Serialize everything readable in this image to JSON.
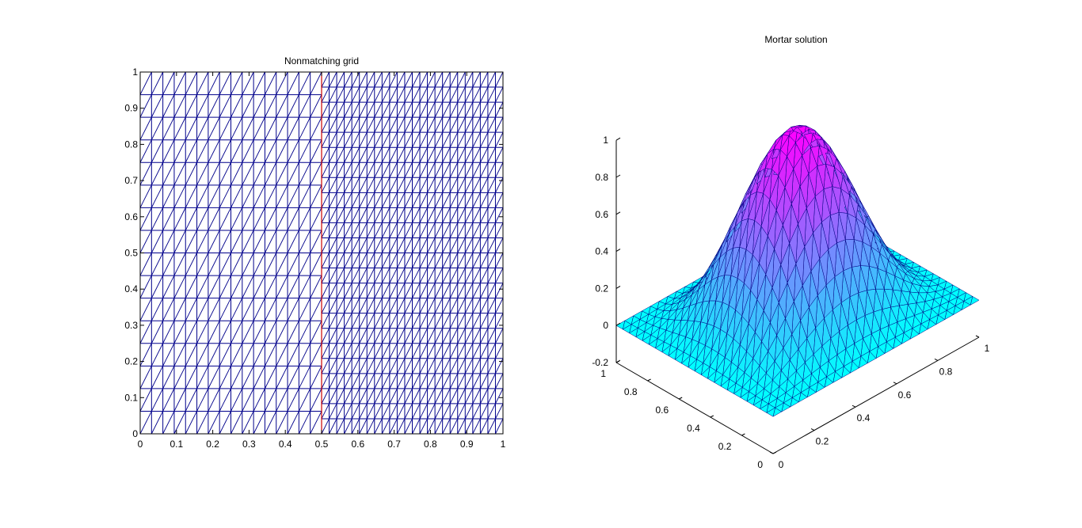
{
  "figure": {
    "background": "#ffffff"
  },
  "chart_data": [
    {
      "type": "mesh",
      "title": "Nonmatching grid",
      "xlim": [
        0,
        1
      ],
      "ylim": [
        0,
        1
      ],
      "xticks": [
        "0",
        "0.1",
        "0.2",
        "0.3",
        "0.4",
        "0.5",
        "0.6",
        "0.7",
        "0.8",
        "0.9",
        "1"
      ],
      "yticks": [
        "0",
        "0.1",
        "0.2",
        "0.3",
        "0.4",
        "0.5",
        "0.6",
        "0.7",
        "0.8",
        "0.9",
        "1"
      ],
      "subdomains": [
        {
          "x_range": [
            0,
            0.5
          ],
          "divisions": 16
        },
        {
          "x_range": [
            0.5,
            1
          ],
          "divisions": 24
        }
      ],
      "interface_x": 0.5,
      "line_color": "#00008b",
      "interface_color": "#cc0000"
    },
    {
      "type": "surface",
      "title": "Mortar solution",
      "xlim": [
        0,
        1
      ],
      "ylim": [
        0,
        1
      ],
      "zlim": [
        -0.2,
        1
      ],
      "xticks": [
        "0",
        "0.2",
        "0.4",
        "0.6",
        "0.8",
        "1"
      ],
      "yticks": [
        "0",
        "0.2",
        "0.4",
        "0.6",
        "0.8",
        "1"
      ],
      "zticks": [
        "-0.2",
        "0",
        "0.2",
        "0.4",
        "0.6",
        "0.8",
        "1"
      ],
      "function": "sin(pi*x)^2 * sin(pi*y)^2",
      "peak": {
        "x": 0.5,
        "y": 0.5,
        "z": 1
      },
      "colormap": [
        "#00ffff",
        "#ff00ff"
      ],
      "edge_color": "#000080"
    }
  ]
}
